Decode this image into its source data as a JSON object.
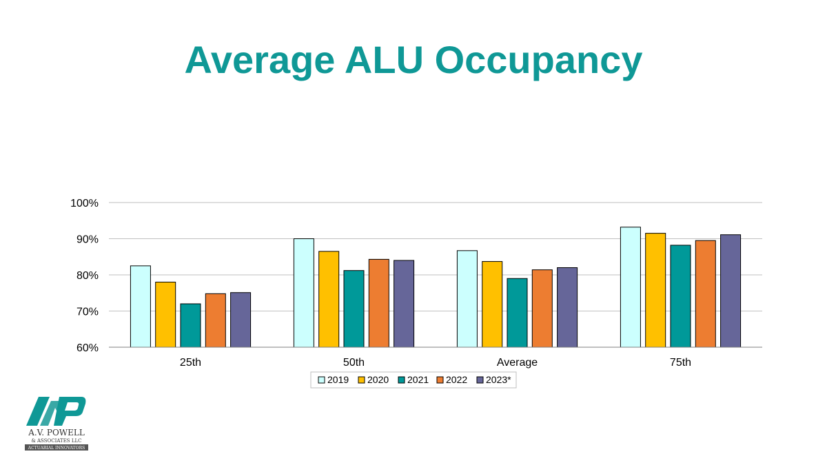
{
  "chart_data": {
    "type": "bar",
    "title": "Average ALU Occupancy",
    "categories": [
      "25th",
      "50th",
      "Average",
      "75th"
    ],
    "series": [
      {
        "name": "2019",
        "color": "#ccfffe",
        "values": [
          82.5,
          90.0,
          86.7,
          93.2
        ]
      },
      {
        "name": "2020",
        "color": "#ffc000",
        "values": [
          78.0,
          86.5,
          83.7,
          91.5
        ]
      },
      {
        "name": "2021",
        "color": "#009999",
        "values": [
          72.0,
          81.2,
          79.0,
          88.2
        ]
      },
      {
        "name": "2022",
        "color": "#ed7d31",
        "values": [
          74.8,
          84.3,
          81.4,
          89.5
        ]
      },
      {
        "name": "2023*",
        "color": "#666699",
        "values": [
          75.1,
          84.0,
          82.0,
          91.1
        ]
      }
    ],
    "ylim": [
      60,
      100
    ],
    "yticks": [
      60,
      70,
      80,
      90,
      100
    ],
    "ytick_labels": [
      "60%",
      "70%",
      "80%",
      "90%",
      "100%"
    ],
    "xlabel": "",
    "ylabel": "",
    "grid": true,
    "legend_position": "bottom"
  },
  "logo": {
    "name": "A.V. POWELL",
    "subtitle": "& ASSOCIATES LLC",
    "tagline": "ACTUARIAL INNOVATORS"
  }
}
